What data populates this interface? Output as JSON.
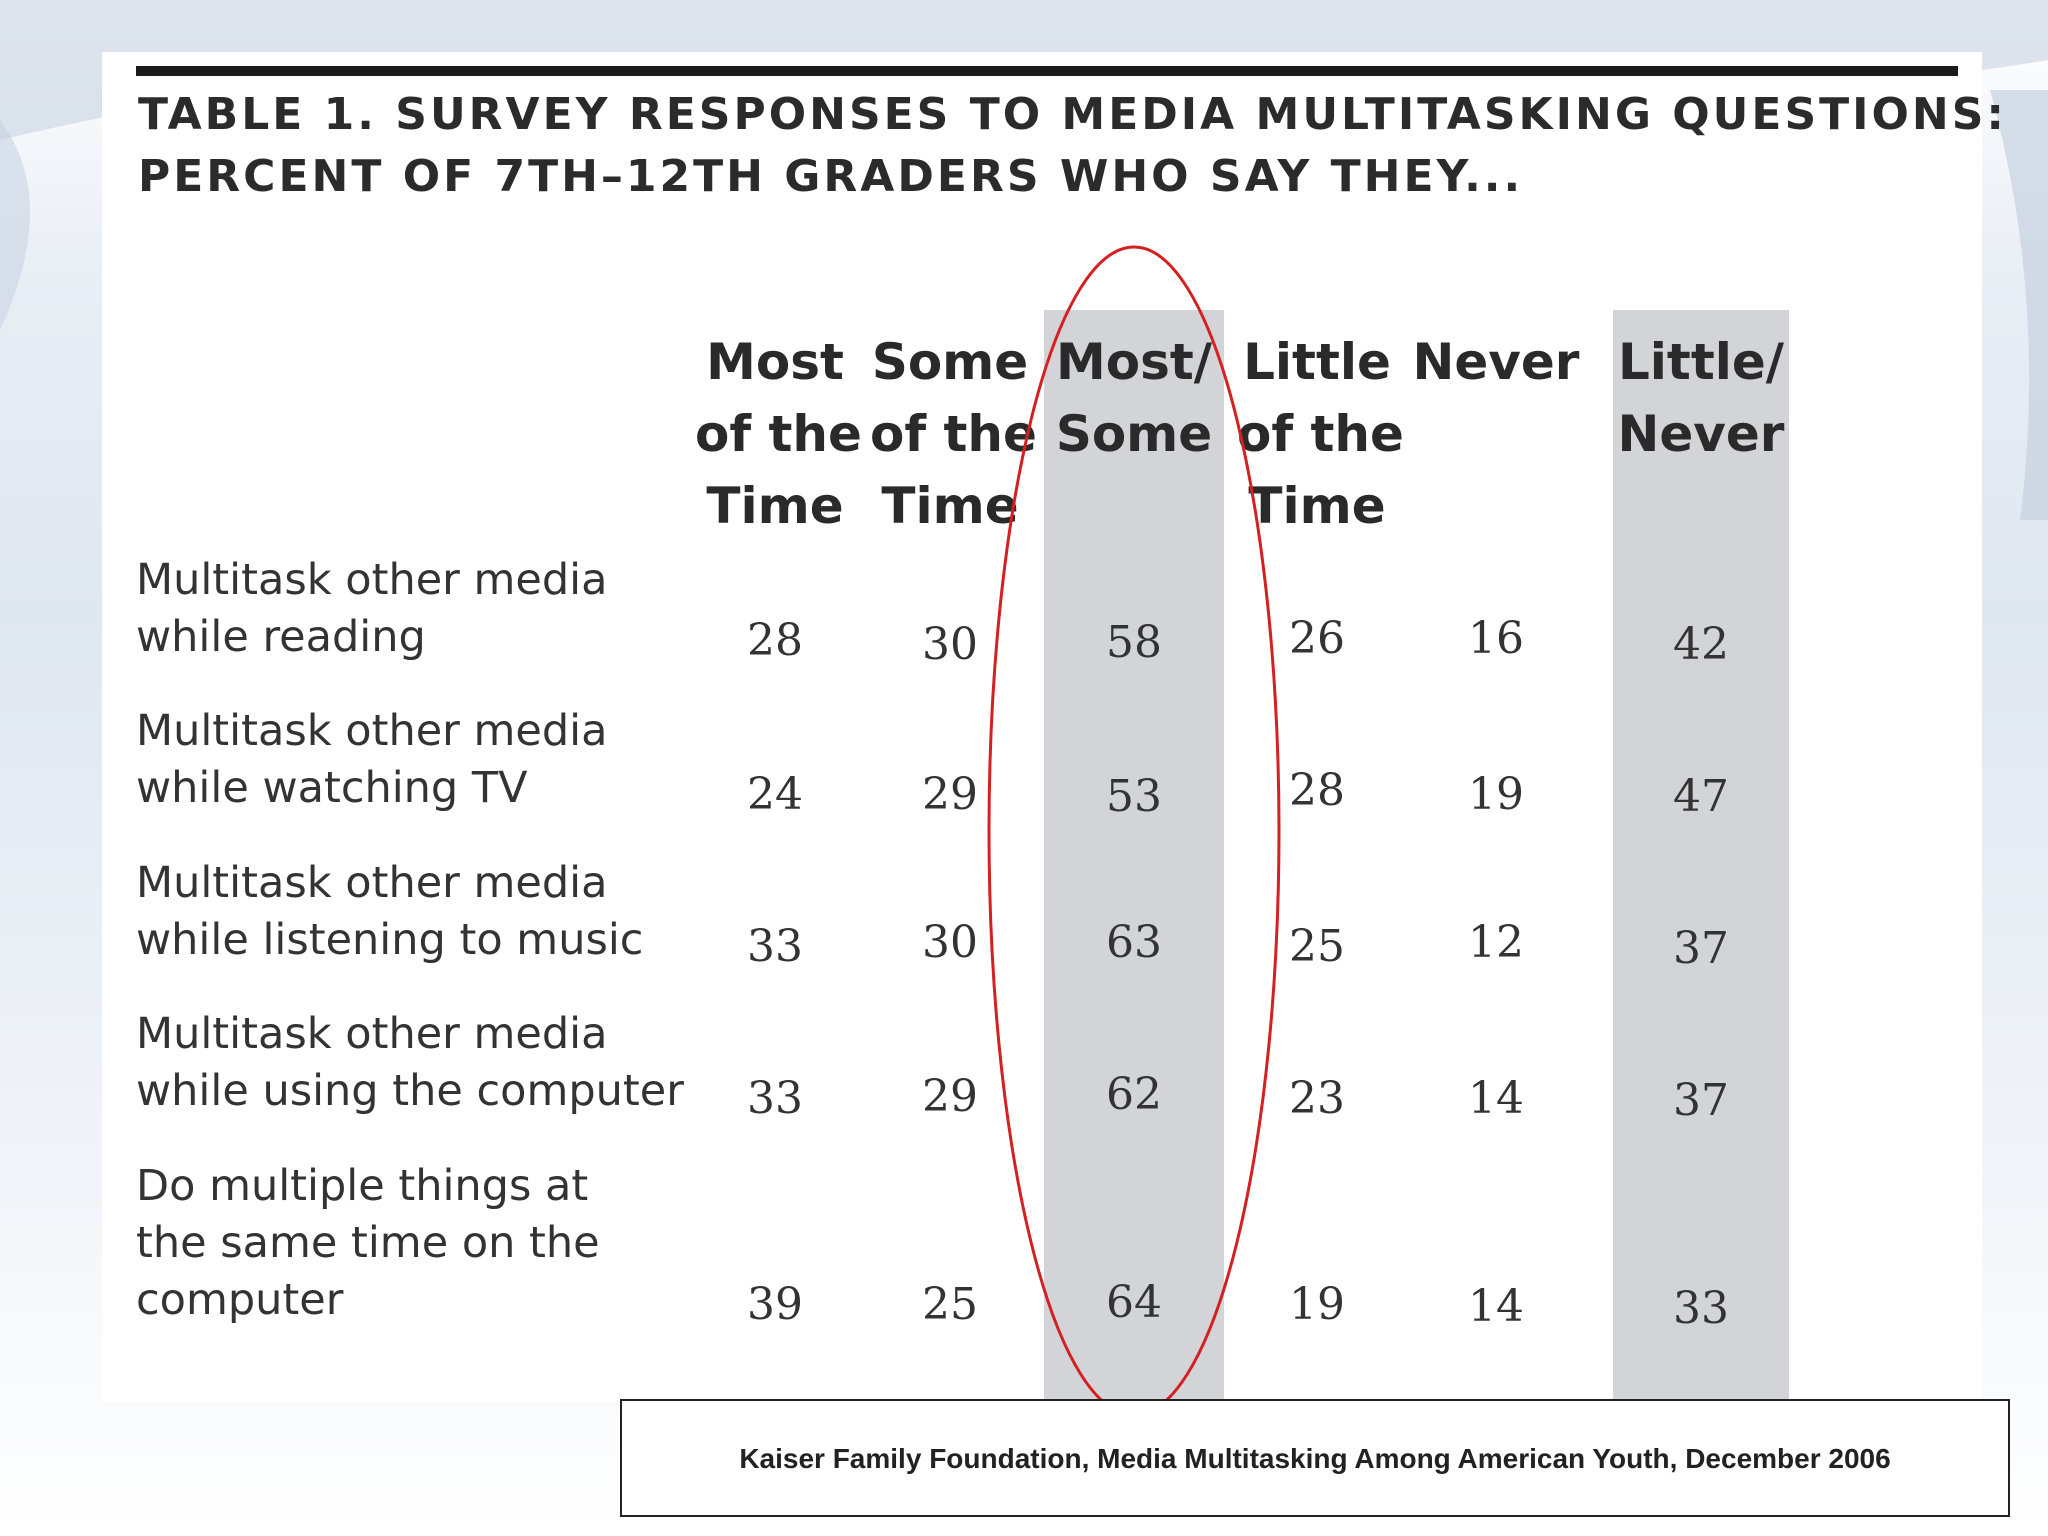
{
  "title": {
    "line1": "TABLE 1.  SURVEY RESPONSES TO MEDIA MULTITASKING QUESTIONS:",
    "line2": "PERCENT OF 7TH–12TH GRADERS WHO SAY THEY..."
  },
  "columns": [
    {
      "lines": [
        "Most",
        "of the",
        "Time"
      ]
    },
    {
      "lines": [
        "Some",
        "of the",
        "Time"
      ]
    },
    {
      "lines": [
        "Most/",
        "Some"
      ]
    },
    {
      "lines": [
        "Little",
        "of the",
        "Time"
      ]
    },
    {
      "lines": [
        "Never"
      ]
    },
    {
      "lines": [
        "Little/",
        "Never"
      ]
    }
  ],
  "rows": [
    {
      "label": [
        "Multitask other media",
        "while reading"
      ],
      "values": [
        "28",
        "30",
        "58",
        "26",
        "16",
        "42"
      ]
    },
    {
      "label": [
        "Multitask other media",
        "while watching TV"
      ],
      "values": [
        "24",
        "29",
        "53",
        "28",
        "19",
        "47"
      ]
    },
    {
      "label": [
        "Multitask other media",
        "while listening to music"
      ],
      "values": [
        "33",
        "30",
        "63",
        "25",
        "12",
        "37"
      ]
    },
    {
      "label": [
        "Multitask other media",
        "while using the computer"
      ],
      "values": [
        "33",
        "29",
        "62",
        "23",
        "14",
        "37"
      ]
    },
    {
      "label": [
        "Do multiple things at",
        "the same time on the",
        "computer"
      ],
      "values": [
        "39",
        "25",
        "64",
        "19",
        "14",
        "33"
      ]
    }
  ],
  "source": "Kaiser Family Foundation, Media Multitasking Among American Youth, December 2006",
  "colors": {
    "shade": "#d3d4d8",
    "highlight_ellipse": "#d42020"
  }
}
